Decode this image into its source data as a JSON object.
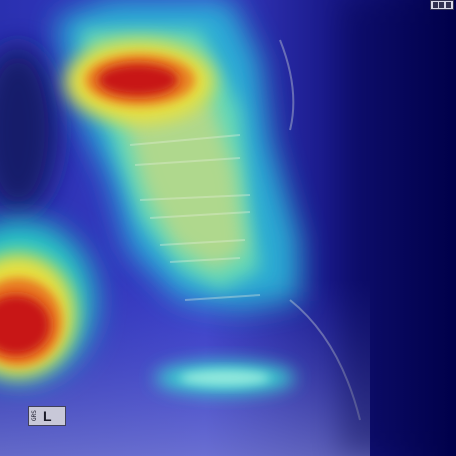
{
  "image": {
    "kind": "lateral spine radiograph with saliency heatmap overlay",
    "colormap": "jet",
    "colors": {
      "background": "#000050",
      "heat_low": "#1e2ad0",
      "heat_mid": "#3ad8c8",
      "heat_high_mid": "#e8e040",
      "heat_high": "#c81818"
    }
  },
  "marker": {
    "code": "GRS",
    "side": "L"
  },
  "corner_icon": {
    "name": "image-info-icon"
  }
}
